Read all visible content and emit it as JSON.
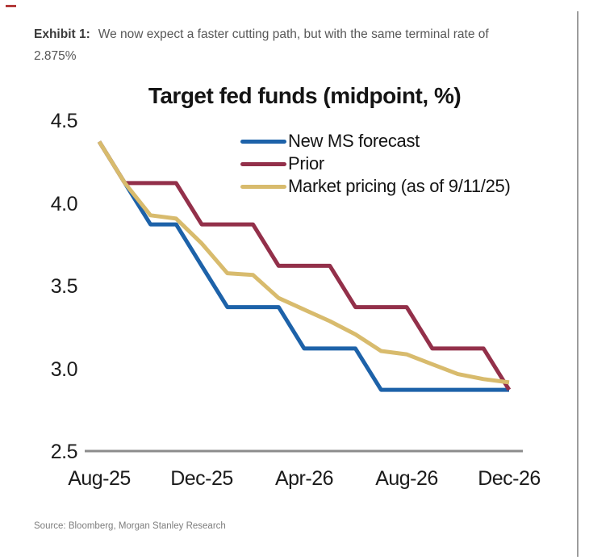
{
  "page": {
    "exhibit_label": "Exhibit 1:",
    "exhibit_text": "We now expect a faster cutting path, but with the same terminal rate of 2.875%",
    "source": "Source: Bloomberg, Morgan Stanley Research"
  },
  "colors": {
    "new_ms_forecast": "#1d62a9",
    "prior": "#93304a",
    "market_pricing": "#d8bb6d",
    "axis_line": "#8c8c8c"
  },
  "chart_data": {
    "type": "line",
    "title": "Target fed funds (midpoint, %)",
    "xlabel": "",
    "ylabel": "",
    "x": [
      "Aug-25",
      "Sep-25",
      "Oct-25",
      "Nov-25",
      "Dec-25",
      "Jan-26",
      "Feb-26",
      "Mar-26",
      "Apr-26",
      "May-26",
      "Jun-26",
      "Jul-26",
      "Aug-26",
      "Sep-26",
      "Oct-26",
      "Nov-26",
      "Dec-26"
    ],
    "x_tick_labels": [
      "Aug-25",
      "Dec-25",
      "Apr-26",
      "Aug-26",
      "Dec-26"
    ],
    "y_ticks": [
      4.5,
      4.0,
      3.5,
      3.0,
      2.5
    ],
    "ylim": [
      2.5,
      4.5
    ],
    "grid": false,
    "legend_position": "upper center, below title",
    "series": [
      {
        "name": "New MS forecast",
        "color": "#1d62a9",
        "values": [
          4.375,
          4.125,
          3.875,
          3.875,
          3.625,
          3.375,
          3.375,
          3.375,
          3.125,
          3.125,
          3.125,
          2.875,
          2.875,
          2.875,
          2.875,
          2.875,
          2.875
        ]
      },
      {
        "name": "Prior",
        "color": "#93304a",
        "values": [
          4.375,
          4.125,
          4.125,
          4.125,
          3.875,
          3.875,
          3.875,
          3.625,
          3.625,
          3.625,
          3.375,
          3.375,
          3.375,
          3.125,
          3.125,
          3.125,
          2.875
        ]
      },
      {
        "name": "Market pricing (as of 9/11/25)",
        "color": "#d8bb6d",
        "values": [
          4.375,
          4.125,
          3.93,
          3.91,
          3.76,
          3.58,
          3.57,
          3.43,
          3.36,
          3.29,
          3.21,
          3.11,
          3.09,
          3.03,
          2.97,
          2.94,
          2.92
        ]
      }
    ]
  }
}
